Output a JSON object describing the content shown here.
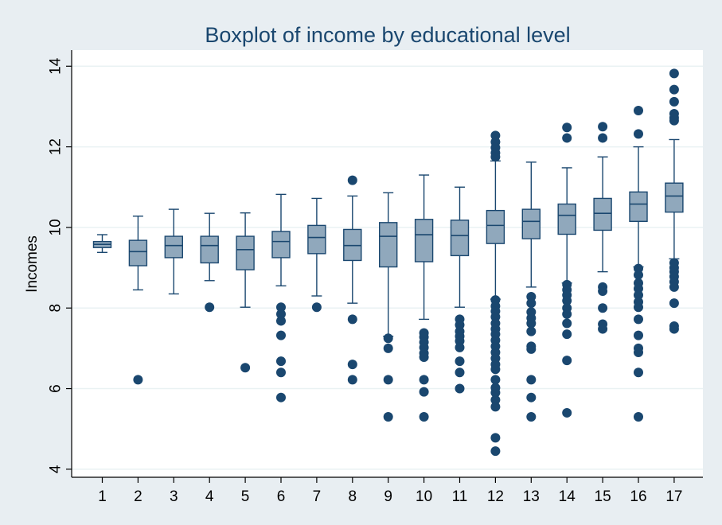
{
  "chart_data": {
    "type": "boxplot",
    "title": "Boxplot of income by educational level",
    "xlabel": "",
    "ylabel": "Incomes",
    "ylim": [
      3.8,
      14.4
    ],
    "yticks": [
      4,
      6,
      8,
      10,
      12,
      14
    ],
    "grid": true,
    "categories": [
      "1",
      "2",
      "3",
      "4",
      "5",
      "6",
      "7",
      "8",
      "9",
      "10",
      "11",
      "12",
      "13",
      "14",
      "15",
      "16",
      "17"
    ],
    "boxes": [
      {
        "category": "1",
        "whisker_low": 9.38,
        "q1": 9.5,
        "median": 9.58,
        "q3": 9.65,
        "whisker_high": 9.82,
        "outliers": []
      },
      {
        "category": "2",
        "whisker_low": 8.45,
        "q1": 9.05,
        "median": 9.4,
        "q3": 9.68,
        "whisker_high": 10.28,
        "outliers": [
          6.22
        ]
      },
      {
        "category": "3",
        "whisker_low": 8.35,
        "q1": 9.25,
        "median": 9.55,
        "q3": 9.78,
        "whisker_high": 10.45,
        "outliers": []
      },
      {
        "category": "4",
        "whisker_low": 8.68,
        "q1": 9.12,
        "median": 9.55,
        "q3": 9.78,
        "whisker_high": 10.35,
        "outliers": [
          8.02
        ]
      },
      {
        "category": "5",
        "whisker_low": 8.02,
        "q1": 8.95,
        "median": 9.45,
        "q3": 9.78,
        "whisker_high": 10.36,
        "outliers": [
          6.52
        ]
      },
      {
        "category": "6",
        "whisker_low": 8.55,
        "q1": 9.25,
        "median": 9.65,
        "q3": 9.9,
        "whisker_high": 10.82,
        "outliers": [
          8.02,
          7.85,
          7.68,
          7.32,
          6.68,
          6.4,
          5.78
        ]
      },
      {
        "category": "7",
        "whisker_low": 8.3,
        "q1": 9.35,
        "median": 9.75,
        "q3": 10.05,
        "whisker_high": 10.72,
        "outliers": [
          8.02
        ]
      },
      {
        "category": "8",
        "whisker_low": 8.12,
        "q1": 9.18,
        "median": 9.55,
        "q3": 9.95,
        "whisker_high": 10.78,
        "outliers": [
          11.17,
          7.72,
          6.6,
          6.22
        ]
      },
      {
        "category": "9",
        "whisker_low": 7.3,
        "q1": 9.02,
        "median": 9.78,
        "q3": 10.12,
        "whisker_high": 10.86,
        "outliers": [
          7.25,
          7.0,
          6.22,
          5.3
        ]
      },
      {
        "category": "10",
        "whisker_low": 7.72,
        "q1": 9.15,
        "median": 9.82,
        "q3": 10.2,
        "whisker_high": 11.3,
        "outliers": [
          7.38,
          7.28,
          7.15,
          7.02,
          6.88,
          6.78,
          6.22,
          5.92,
          5.3
        ]
      },
      {
        "category": "11",
        "whisker_low": 8.02,
        "q1": 9.3,
        "median": 9.8,
        "q3": 10.18,
        "whisker_high": 11.0,
        "outliers": [
          7.72,
          7.58,
          7.42,
          7.3,
          7.18,
          7.02,
          6.68,
          6.4,
          6.0
        ]
      },
      {
        "category": "12",
        "whisker_low": 8.22,
        "q1": 9.6,
        "median": 10.05,
        "q3": 10.42,
        "whisker_high": 11.65,
        "outliers": [
          12.28,
          12.12,
          11.98,
          11.85,
          11.75,
          8.2,
          8.05,
          7.92,
          7.78,
          7.62,
          7.48,
          7.35,
          7.2,
          7.05,
          6.9,
          6.75,
          6.6,
          6.48,
          6.22,
          6.02,
          5.9,
          5.72,
          5.55,
          4.78,
          4.45
        ]
      },
      {
        "category": "13",
        "whisker_low": 8.52,
        "q1": 9.72,
        "median": 10.15,
        "q3": 10.45,
        "whisker_high": 11.62,
        "outliers": [
          8.28,
          8.12,
          7.9,
          7.75,
          7.62,
          7.42,
          7.05,
          6.98,
          6.22,
          5.78,
          5.3
        ]
      },
      {
        "category": "14",
        "whisker_low": 8.62,
        "q1": 9.83,
        "median": 10.3,
        "q3": 10.58,
        "whisker_high": 11.48,
        "outliers": [
          12.48,
          12.22,
          8.58,
          8.45,
          8.32,
          8.18,
          8.0,
          7.85,
          7.62,
          7.35,
          6.7,
          5.4
        ]
      },
      {
        "category": "15",
        "whisker_low": 8.9,
        "q1": 9.93,
        "median": 10.35,
        "q3": 10.72,
        "whisker_high": 11.75,
        "outliers": [
          12.5,
          12.22,
          8.52,
          8.42,
          8.0,
          7.6,
          7.48
        ]
      },
      {
        "category": "16",
        "whisker_low": 9.02,
        "q1": 10.15,
        "median": 10.58,
        "q3": 10.88,
        "whisker_high": 12.0,
        "outliers": [
          12.9,
          12.32,
          8.98,
          8.82,
          8.62,
          8.48,
          8.32,
          8.15,
          8.02,
          7.72,
          7.32,
          7.0,
          6.9,
          6.4,
          5.3
        ]
      },
      {
        "category": "17",
        "whisker_low": 9.22,
        "q1": 10.38,
        "median": 10.78,
        "q3": 11.1,
        "whisker_high": 12.18,
        "outliers": [
          13.82,
          13.42,
          13.12,
          12.82,
          12.72,
          12.65,
          9.12,
          9.0,
          8.9,
          8.78,
          8.65,
          8.52,
          8.12,
          7.55,
          7.48
        ]
      }
    ]
  },
  "colors": {
    "background": "#e8eef2",
    "plot_background": "#ffffff",
    "box_fill": "#90a8bc",
    "box_stroke": "#1a476f",
    "outlier": "#1a476f",
    "gridline": "#eaf2f3",
    "axis": "#000000",
    "title": "#1a476f"
  }
}
